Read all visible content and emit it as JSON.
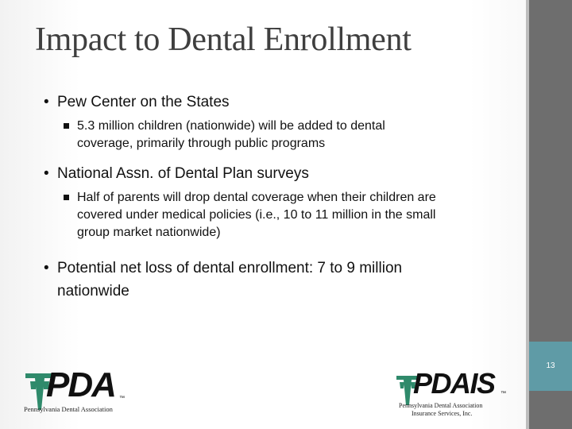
{
  "slide": {
    "title": "Impact to Dental Enrollment",
    "page_number": "13"
  },
  "bullets": [
    {
      "text": "Pew Center on the States",
      "sub": [
        "5.3 million children (nationwide) will be added to dental",
        "coverage, primarily through public programs"
      ]
    },
    {
      "text": "National Assn. of Dental Plan surveys",
      "sub": [
        "Half of parents will drop dental coverage when their children are",
        "covered under medical policies (i.e., 10 to 11 million in the small",
        "group market nationwide)"
      ]
    },
    {
      "text_lines": [
        "Potential net loss of dental enrollment: 7 to 9 million",
        "nationwide"
      ]
    }
  ],
  "logos": {
    "left": {
      "name": "PDA",
      "tm": "™",
      "caption": "Pennsylvania Dental Association"
    },
    "right": {
      "name": "PDAIS",
      "tm": "™",
      "caption_line1": "Pennsylvania Dental Association",
      "caption_line2": "Insurance Services, Inc."
    }
  },
  "colors": {
    "sidebar": "#6e6e6e",
    "accent_teal": "#5f9ba6",
    "logo_green": "#2f8a6b",
    "logo_black": "#111111"
  }
}
